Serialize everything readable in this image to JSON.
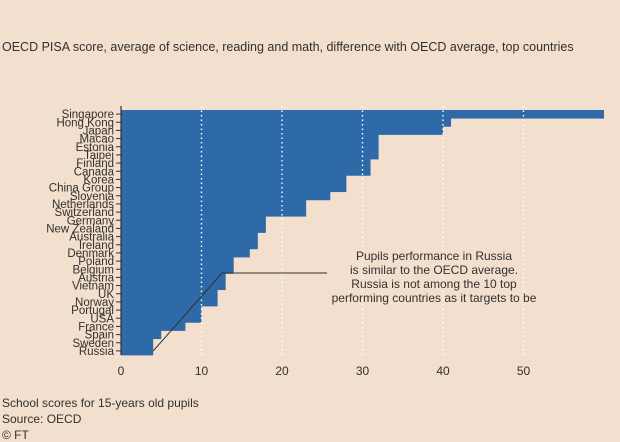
{
  "chart_data": {
    "type": "bar",
    "orientation": "horizontal",
    "title": "OECD PISA score, average of science, reading and math, difference with OECD average, top countries",
    "categories": [
      "Singapore",
      "Hong Kong",
      "Japan",
      "Macao",
      "Estonia",
      "Taipei",
      "Finland",
      "Canada",
      "Korea",
      "China Group",
      "Slovenia",
      "Netherlands",
      "Switzerland",
      "Germany",
      "New Zealand",
      "Australia",
      "Ireland",
      "Denmark",
      "Poland",
      "Belgium",
      "Austria",
      "Vietnam",
      "UK",
      "Norway",
      "Portugal",
      "USA",
      "France",
      "Spain",
      "Sweden",
      "Russia"
    ],
    "values": [
      60,
      41,
      40,
      32,
      32,
      32,
      31,
      31,
      28,
      28,
      26,
      23,
      23,
      18,
      18,
      17,
      17,
      16,
      14,
      14,
      13,
      13,
      12,
      12,
      10,
      10,
      8,
      5,
      4,
      4
    ],
    "xlim": [
      0,
      60
    ],
    "xticks": [
      0,
      10,
      20,
      30,
      40,
      50
    ],
    "xlabel": "",
    "ylabel": "",
    "grid": true,
    "bar_color": "#2e6aa8",
    "annotation": {
      "lines": [
        "Pupils performance in Russia",
        "is similar to the OECD average.",
        "Russia is not among the 10 top",
        "performing countries as it targets to be"
      ]
    }
  },
  "footer": {
    "note": "School scores for 15-years old pupils",
    "source": "Source: OECD",
    "credit": "© FT"
  }
}
